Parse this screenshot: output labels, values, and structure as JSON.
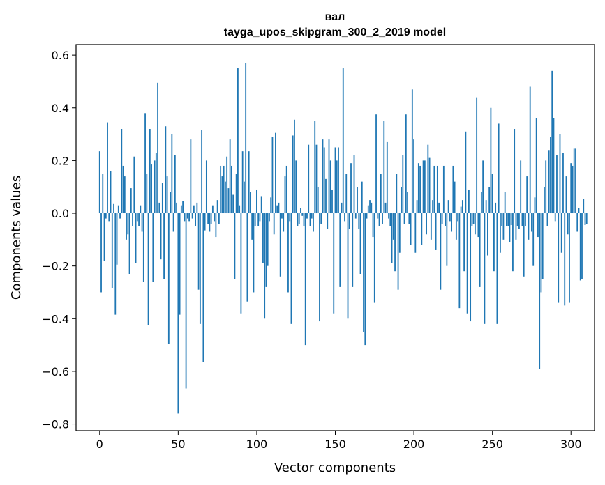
{
  "chart_data": {
    "type": "bar",
    "title_line1": "вал",
    "title_line2": "tayga_upos_skipgram_300_2_2019 model",
    "xlabel": "Vector components",
    "ylabel": "Components values",
    "xlim": [
      -15,
      315
    ],
    "ylim": [
      -0.825,
      0.64
    ],
    "xticks": [
      0,
      50,
      100,
      150,
      200,
      250,
      300
    ],
    "xtick_labels": [
      "0",
      "50",
      "100",
      "150",
      "200",
      "250",
      "300"
    ],
    "yticks": [
      -0.8,
      -0.6,
      -0.4,
      -0.2,
      0.0,
      0.2,
      0.4,
      0.6
    ],
    "ytick_labels": [
      "−0.8",
      "−0.6",
      "−0.4",
      "−0.2",
      "0.0",
      "0.2",
      "0.4",
      "0.6"
    ],
    "bar_color": "#1f77b4",
    "values": [
      0.235,
      -0.3,
      0.15,
      -0.18,
      -0.02,
      0.345,
      -0.03,
      0.16,
      -0.285,
      0.035,
      -0.385,
      -0.195,
      0.03,
      -0.02,
      0.32,
      0.18,
      0.14,
      -0.1,
      -0.08,
      -0.23,
      0.095,
      -0.05,
      0.215,
      -0.19,
      -0.03,
      -0.05,
      0.03,
      -0.07,
      -0.26,
      0.38,
      0.15,
      -0.425,
      0.32,
      0.185,
      -0.26,
      0.2,
      0.23,
      0.495,
      0.04,
      -0.175,
      0.115,
      -0.25,
      0.33,
      0.14,
      -0.495,
      0.08,
      0.3,
      -0.07,
      0.22,
      0.04,
      -0.76,
      -0.385,
      0.03,
      0.045,
      -0.03,
      -0.665,
      -0.02,
      -0.03,
      0.28,
      -0.02,
      0.03,
      -0.05,
      0.04,
      -0.29,
      -0.42,
      0.315,
      -0.565,
      -0.065,
      0.2,
      -0.04,
      -0.07,
      -0.04,
      0.03,
      -0.03,
      -0.09,
      0.05,
      -0.04,
      0.18,
      0.14,
      0.18,
      0.12,
      0.215,
      0.095,
      0.28,
      0.18,
      0.07,
      -0.25,
      0.15,
      0.55,
      0.03,
      -0.38,
      0.235,
      0.12,
      0.57,
      -0.335,
      0.235,
      0.08,
      -0.1,
      -0.3,
      -0.05,
      0.09,
      -0.05,
      -0.03,
      0.065,
      -0.19,
      -0.4,
      -0.28,
      -0.2,
      -0.03,
      0.06,
      0.29,
      -0.08,
      0.305,
      0.03,
      0.04,
      -0.24,
      -0.02,
      -0.07,
      0.14,
      0.18,
      -0.3,
      -0.03,
      -0.42,
      0.295,
      0.355,
      0.2,
      -0.05,
      -0.04,
      0.02,
      -0.01,
      -0.05,
      -0.5,
      -0.02,
      0.26,
      -0.05,
      -0.02,
      -0.07,
      0.35,
      0.26,
      0.1,
      -0.41,
      -0.04,
      0.28,
      0.25,
      0.13,
      -0.06,
      0.28,
      0.2,
      0.09,
      -0.38,
      0.25,
      0.2,
      0.25,
      -0.28,
      0.04,
      0.55,
      -0.03,
      0.15,
      -0.4,
      -0.06,
      0.19,
      -0.28,
      0.22,
      -0.02,
      0.1,
      -0.06,
      -0.23,
      0.12,
      -0.45,
      -0.5,
      -0.02,
      0.03,
      0.05,
      0.04,
      -0.09,
      -0.34,
      0.375,
      -0.02,
      -0.05,
      0.15,
      -0.04,
      0.35,
      0.04,
      0.27,
      -0.02,
      -0.05,
      -0.19,
      -0.1,
      -0.22,
      0.15,
      -0.29,
      -0.15,
      0.1,
      0.22,
      -0.04,
      0.375,
      0.08,
      -0.04,
      -0.12,
      0.47,
      0.28,
      -0.15,
      0.05,
      0.19,
      0.18,
      -0.12,
      0.2,
      0.2,
      -0.08,
      0.26,
      0.21,
      -0.1,
      0.05,
      0.18,
      -0.14,
      0.18,
      0.04,
      -0.29,
      -0.04,
      0.18,
      -0.05,
      -0.2,
      0.05,
      -0.03,
      -0.07,
      0.18,
      0.12,
      -0.1,
      -0.03,
      -0.36,
      0.025,
      0.05,
      -0.22,
      0.31,
      -0.38,
      0.09,
      -0.41,
      -0.05,
      -0.04,
      -0.08,
      0.44,
      -0.09,
      -0.28,
      0.08,
      0.2,
      -0.42,
      0.05,
      -0.16,
      0.1,
      0.4,
      0.15,
      -0.22,
      0.04,
      -0.42,
      0.34,
      -0.15,
      -0.05,
      -0.1,
      0.08,
      -0.05,
      -0.05,
      -0.11,
      -0.045,
      -0.22,
      0.32,
      -0.1,
      -0.05,
      -0.06,
      0.2,
      -0.05,
      -0.24,
      -0.05,
      0.14,
      -0.1,
      0.48,
      -0.07,
      -0.2,
      0.06,
      0.36,
      -0.09,
      -0.59,
      -0.3,
      -0.25,
      0.1,
      0.2,
      -0.05,
      0.24,
      0.29,
      0.54,
      0.36,
      -0.03,
      0.22,
      -0.34,
      0.3,
      -0.15,
      0.23,
      -0.35,
      0.14,
      -0.08,
      -0.34,
      0.19,
      0.18,
      0.245,
      0.245,
      -0.07,
      0.02,
      -0.255,
      -0.25,
      0.055,
      -0.045,
      -0.04
    ]
  }
}
